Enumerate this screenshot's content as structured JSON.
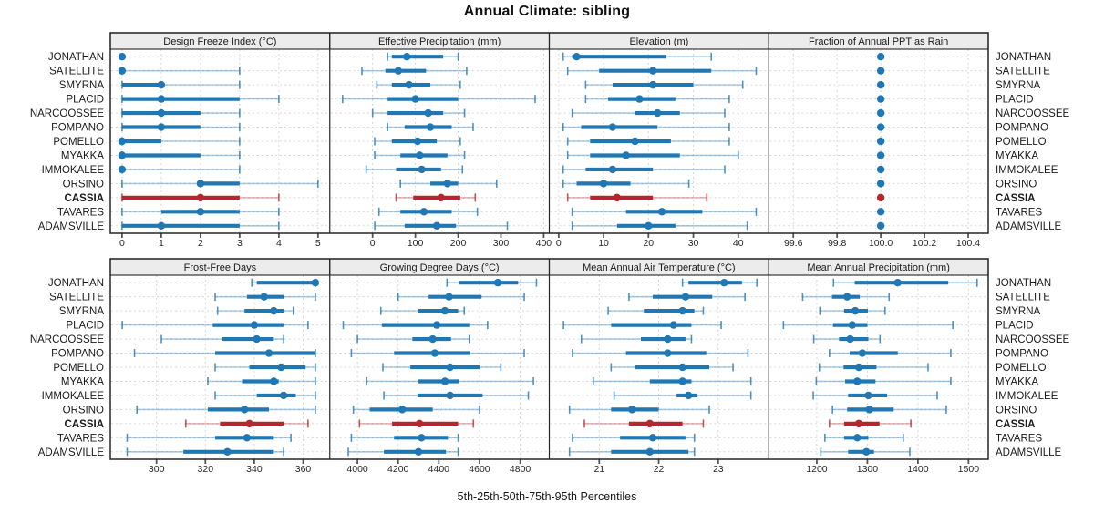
{
  "title": "Annual Climate: sibling",
  "footer": "5th-25th-50th-75th-95th Percentiles",
  "colors": {
    "series": "#1f77b4",
    "series_light": "rgba(31,119,180,0.38)",
    "series_cap": "rgba(31,119,180,0.80)",
    "highlight": "#b3282d",
    "highlight_light": "rgba(179,40,45,0.38)",
    "highlight_cap": "rgba(179,40,45,0.80)",
    "grid": "#d7d7d7",
    "border": "#262626",
    "header_fill": "#ececec",
    "tick": "#555555",
    "text": "#1a1a1a"
  },
  "chart_data": {
    "type": "dot-whisker-percentiles",
    "percentiles": [
      5,
      25,
      50,
      75,
      95
    ],
    "legend_note": "5th-25th-50th-75th-95th Percentiles",
    "rows": [
      "JONATHAN",
      "SATELLITE",
      "SMYRNA",
      "PLACID",
      "NARCOOSSEE",
      "POMPANO",
      "POMELLO",
      "MYAKKA",
      "IMMOKALEE",
      "ORSINO",
      "CASSIA",
      "TAVARES",
      "ADAMSVILLE"
    ],
    "highlight_row": "CASSIA",
    "panels": [
      {
        "title": "Design Freeze Index (°C)",
        "domain": [
          -0.3,
          5.3
        ],
        "ticks": [
          0,
          1,
          2,
          3,
          4,
          5
        ],
        "tick_labels": [
          "0",
          "1",
          "2",
          "3",
          "4",
          "5"
        ],
        "values": [
          [
            0,
            0,
            0,
            0,
            0
          ],
          [
            0,
            0,
            0,
            0,
            3
          ],
          [
            0,
            0,
            1,
            1,
            3
          ],
          [
            0,
            0,
            1,
            3,
            4
          ],
          [
            0,
            0,
            1,
            2,
            3
          ],
          [
            0,
            0,
            1,
            2,
            3
          ],
          [
            0,
            0,
            0,
            1,
            3
          ],
          [
            0,
            0,
            0,
            2,
            3
          ],
          [
            0,
            0,
            0,
            0,
            3
          ],
          [
            0,
            2,
            2,
            3,
            5
          ],
          [
            0,
            0,
            2,
            3,
            4
          ],
          [
            0,
            1,
            2,
            3,
            4
          ],
          [
            0,
            0,
            1,
            3,
            4
          ]
        ]
      },
      {
        "title": "Effective Precipitation (mm)",
        "domain": [
          -100,
          413
        ],
        "ticks": [
          0,
          100,
          200,
          300,
          400
        ],
        "tick_labels": [
          "0",
          "100",
          "200",
          "300",
          "400"
        ],
        "values": [
          [
            35,
            45,
            80,
            165,
            200
          ],
          [
            -25,
            30,
            60,
            125,
            220
          ],
          [
            10,
            45,
            85,
            135,
            205
          ],
          [
            -70,
            35,
            100,
            200,
            380
          ],
          [
            0,
            35,
            130,
            165,
            215
          ],
          [
            35,
            75,
            135,
            185,
            235
          ],
          [
            5,
            45,
            105,
            150,
            205
          ],
          [
            5,
            65,
            110,
            175,
            215
          ],
          [
            -15,
            55,
            115,
            160,
            210
          ],
          [
            65,
            135,
            175,
            200,
            290
          ],
          [
            55,
            95,
            160,
            205,
            240
          ],
          [
            15,
            65,
            120,
            185,
            245
          ],
          [
            5,
            75,
            150,
            195,
            315
          ]
        ]
      },
      {
        "title": "Elevation (m)",
        "domain": [
          -2.1,
          46.8
        ],
        "ticks": [
          0,
          10,
          20,
          30,
          40
        ],
        "tick_labels": [
          "0",
          "10",
          "20",
          "30",
          "40"
        ],
        "values": [
          [
            1,
            3,
            4,
            24,
            34
          ],
          [
            2,
            9,
            21,
            34,
            44
          ],
          [
            6,
            12,
            21,
            30,
            41
          ],
          [
            6,
            11,
            18,
            26,
            38
          ],
          [
            3,
            17,
            22,
            27,
            37
          ],
          [
            1,
            5,
            12,
            22,
            38
          ],
          [
            2,
            7,
            17,
            25,
            38
          ],
          [
            2,
            7,
            15,
            27,
            40
          ],
          [
            1,
            6,
            12,
            21,
            37
          ],
          [
            1,
            4,
            10,
            16,
            29
          ],
          [
            2,
            7,
            13,
            21,
            33
          ],
          [
            3,
            15,
            23,
            32,
            44
          ],
          [
            3,
            13,
            20,
            26,
            42
          ]
        ]
      },
      {
        "title": "Fraction of Annual PPT as Rain",
        "domain": [
          99.4875,
          100.4917
        ],
        "ticks": [
          99.6,
          99.8,
          100.0,
          100.2,
          100.4
        ],
        "tick_labels": [
          "99.6",
          "99.8",
          "100.0",
          "100.2",
          "100.4"
        ],
        "values": [
          [
            100,
            100,
            100,
            100,
            100
          ],
          [
            100,
            100,
            100,
            100,
            100
          ],
          [
            100,
            100,
            100,
            100,
            100
          ],
          [
            100,
            100,
            100,
            100,
            100
          ],
          [
            100,
            100,
            100,
            100,
            100
          ],
          [
            100,
            100,
            100,
            100,
            100
          ],
          [
            100,
            100,
            100,
            100,
            100
          ],
          [
            100,
            100,
            100,
            100,
            100
          ],
          [
            100,
            100,
            100,
            100,
            100
          ],
          [
            100,
            100,
            100,
            100,
            100
          ],
          [
            100,
            100,
            100,
            100,
            100
          ],
          [
            100,
            100,
            100,
            100,
            100
          ],
          [
            100,
            100,
            100,
            100,
            100
          ]
        ]
      },
      {
        "title": "Frost-Free Days",
        "domain": [
          281.1,
          370.9
        ],
        "ticks": [
          300,
          320,
          340,
          360
        ],
        "tick_labels": [
          "300",
          "320",
          "340",
          "360"
        ],
        "values": [
          [
            339,
            341,
            365,
            365,
            365
          ],
          [
            324,
            337,
            344,
            352,
            365
          ],
          [
            325,
            336,
            348,
            352,
            356
          ],
          [
            286,
            323,
            340,
            352,
            362
          ],
          [
            302,
            327,
            341,
            348,
            352
          ],
          [
            291,
            324,
            346,
            365,
            365
          ],
          [
            324,
            338,
            351,
            361,
            365
          ],
          [
            321,
            335,
            348,
            350,
            365
          ],
          [
            324,
            341,
            352,
            357,
            365
          ],
          [
            292,
            321,
            336,
            346,
            365
          ],
          [
            312,
            326,
            338,
            352,
            362
          ],
          [
            288,
            324,
            337,
            348,
            355
          ],
          [
            288,
            311,
            329,
            348,
            352
          ]
        ]
      },
      {
        "title": "Growing Degree Days (°C)",
        "domain": [
          3864,
          4943
        ],
        "ticks": [
          4000,
          4200,
          4400,
          4600,
          4800
        ],
        "tick_labels": [
          "4000",
          "4200",
          "4400",
          "4600",
          "4800"
        ],
        "values": [
          [
            4440,
            4500,
            4690,
            4790,
            4880
          ],
          [
            4200,
            4350,
            4450,
            4610,
            4820
          ],
          [
            4115,
            4300,
            4430,
            4495,
            4525
          ],
          [
            3930,
            4120,
            4390,
            4550,
            4640
          ],
          [
            4000,
            4270,
            4370,
            4460,
            4550
          ],
          [
            3970,
            4180,
            4380,
            4555,
            4820
          ],
          [
            4125,
            4260,
            4455,
            4600,
            4705
          ],
          [
            4045,
            4300,
            4430,
            4500,
            4865
          ],
          [
            4130,
            4295,
            4455,
            4615,
            4840
          ],
          [
            3980,
            4060,
            4220,
            4370,
            4600
          ],
          [
            4010,
            4170,
            4305,
            4495,
            4570
          ],
          [
            3970,
            4180,
            4315,
            4445,
            4495
          ],
          [
            3955,
            4130,
            4300,
            4435,
            4495
          ]
        ]
      },
      {
        "title": "Mean Annual Air Temperature (°C)",
        "domain": [
          20.16,
          23.85
        ],
        "ticks": [
          21,
          22,
          23
        ],
        "tick_labels": [
          "21",
          "22",
          "23"
        ],
        "values": [
          [
            22.4,
            22.5,
            23.1,
            23.4,
            23.65
          ],
          [
            21.5,
            21.9,
            22.45,
            22.9,
            23.45
          ],
          [
            21.15,
            21.75,
            22.4,
            22.6,
            22.75
          ],
          [
            20.4,
            21.2,
            22.25,
            22.55,
            23.05
          ],
          [
            20.7,
            21.7,
            22.15,
            22.45,
            22.55
          ],
          [
            20.55,
            21.45,
            22.15,
            22.8,
            23.5
          ],
          [
            21.2,
            21.6,
            22.4,
            22.85,
            23.25
          ],
          [
            20.9,
            21.85,
            22.4,
            22.55,
            23.55
          ],
          [
            21.25,
            22.3,
            22.5,
            22.65,
            23.55
          ],
          [
            20.5,
            21.2,
            21.55,
            22.0,
            22.85
          ],
          [
            20.75,
            21.5,
            21.85,
            22.4,
            22.75
          ],
          [
            20.55,
            21.35,
            21.9,
            22.45,
            22.6
          ],
          [
            20.5,
            21.2,
            21.85,
            22.5,
            22.6
          ]
        ]
      },
      {
        "title": "Mean Annual Precipitation (mm)",
        "domain": [
          1105,
          1539
        ],
        "ticks": [
          1200,
          1300,
          1400,
          1500
        ],
        "tick_labels": [
          "1200",
          "1300",
          "1400",
          "1500"
        ],
        "values": [
          [
            1233,
            1275,
            1360,
            1460,
            1517
          ],
          [
            1172,
            1230,
            1260,
            1285,
            1343
          ],
          [
            1206,
            1254,
            1276,
            1301,
            1335
          ],
          [
            1134,
            1232,
            1270,
            1300,
            1469
          ],
          [
            1194,
            1244,
            1266,
            1302,
            1325
          ],
          [
            1225,
            1265,
            1290,
            1360,
            1465
          ],
          [
            1205,
            1253,
            1283,
            1318,
            1420
          ],
          [
            1199,
            1256,
            1280,
            1316,
            1465
          ],
          [
            1193,
            1262,
            1302,
            1339,
            1438
          ],
          [
            1231,
            1260,
            1304,
            1352,
            1456
          ],
          [
            1225,
            1254,
            1283,
            1324,
            1386
          ],
          [
            1216,
            1254,
            1280,
            1302,
            1371
          ],
          [
            1208,
            1262,
            1298,
            1313,
            1384
          ]
        ]
      }
    ]
  }
}
